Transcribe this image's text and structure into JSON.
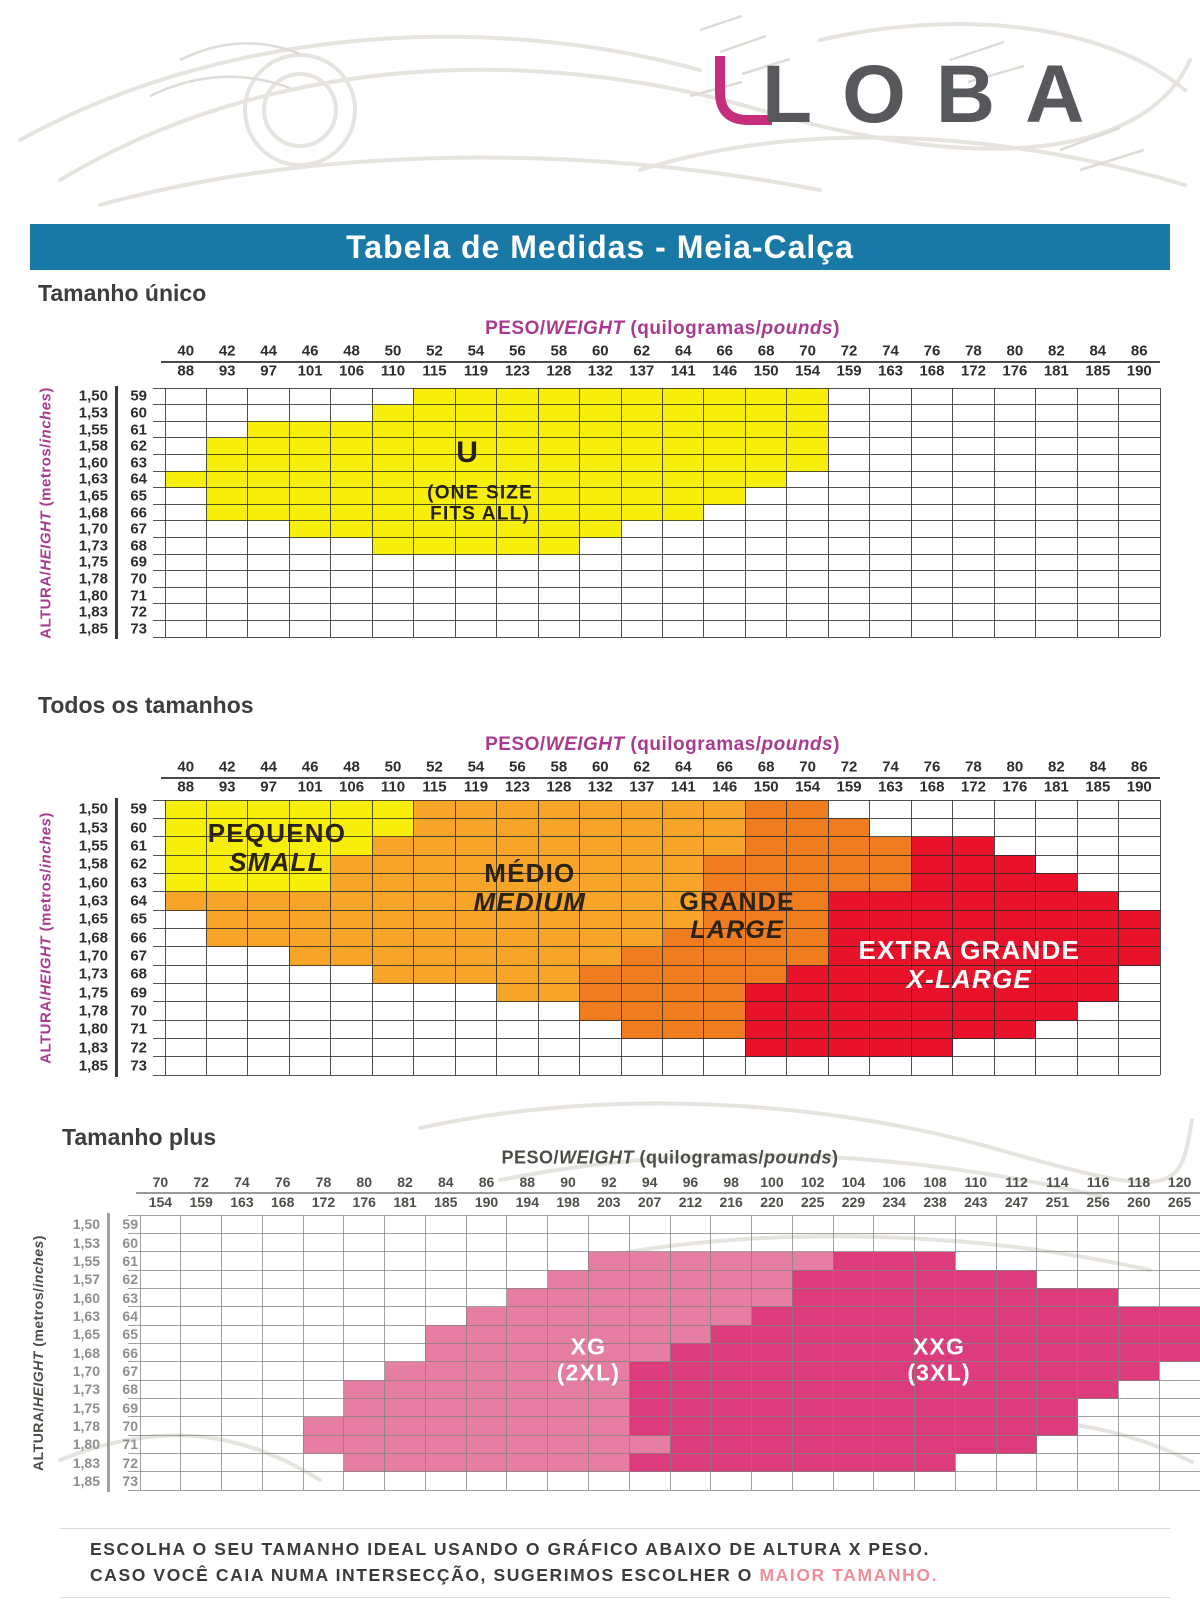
{
  "logo": {
    "text": "LOBA",
    "text_color": "#57585b",
    "accent_color": "#c62d7d"
  },
  "title": {
    "text": "Tabela de Medidas - Meia-Calça",
    "bg_color": "#1878a6",
    "text_color": "#ffffff"
  },
  "footer": {
    "line1": "ESCOLHA O SEU TAMANHO IDEAL USANDO O GRÁFICO ABAIXO DE ALTURA X PESO.",
    "line2_prefix": "CASO VOCÊ CAIA NUMA INTERSECÇÃO, SUGERIMOS ESCOLHER O ",
    "line2_highlight": "MAIOR TAMANHO.",
    "highlight_color": "#ee8e97"
  },
  "chart_data": [
    {
      "id": "tamanho-unico",
      "type": "heatmap",
      "heading": "Tamanho único",
      "xlabel": "PESO/WEIGHT (quilogramas/pounds)",
      "ylabel": "ALTURA/HEIGHT (metros/inches)",
      "x_axis": {
        "label_pt": "PESO",
        "label_en": "WEIGHT",
        "unit_pt": "quilogramas",
        "unit_en": "pounds",
        "kg": [
          40,
          42,
          44,
          46,
          48,
          50,
          52,
          54,
          56,
          58,
          60,
          62,
          64,
          66,
          68,
          70,
          72,
          74,
          76,
          78,
          80,
          82,
          84,
          86
        ],
        "lbs": [
          88,
          93,
          97,
          101,
          106,
          110,
          115,
          119,
          123,
          128,
          132,
          137,
          141,
          146,
          150,
          154,
          159,
          163,
          168,
          172,
          176,
          181,
          185,
          190
        ]
      },
      "y_axis": {
        "label_pt": "ALTURA",
        "label_en": "HEIGHT",
        "unit_pt": "metros",
        "unit_en": "inches",
        "meters": [
          "1,50",
          "1,53",
          "1,55",
          "1,58",
          "1,60",
          "1,63",
          "1,65",
          "1,68",
          "1,70",
          "1,73",
          "1,75",
          "1,78",
          "1,80",
          "1,83",
          "1,85"
        ],
        "inches": [
          59,
          60,
          61,
          62,
          63,
          64,
          65,
          66,
          67,
          68,
          69,
          70,
          71,
          72,
          73
        ]
      },
      "colors": {
        "axis_title": "#a93a90",
        "numbers": "#2d2d2d",
        "heights": "#2d2d2d",
        "grid": "rgba(42,42,42,0.82)",
        "divider": "#3a3a3a",
        "separator": "#4a4a4a"
      },
      "regions": [
        {
          "id": "u",
          "size_pt": "U",
          "size_en": "ONE SIZE FITS ALL",
          "color": "#f8ee0c",
          "rows": [
            [
              59,
              6,
              15
            ],
            [
              60,
              5,
              15
            ],
            [
              61,
              2,
              15
            ],
            [
              62,
              1,
              15
            ],
            [
              63,
              1,
              15
            ],
            [
              64,
              0,
              14
            ],
            [
              65,
              1,
              13
            ],
            [
              66,
              1,
              12
            ],
            [
              67,
              3,
              10
            ],
            [
              68,
              5,
              9
            ]
          ]
        }
      ],
      "annotations": [
        {
          "id": "u-letter",
          "lines": [
            {
              "text": "U"
            }
          ],
          "col": 7.3,
          "row": 3.9,
          "size": 30,
          "color": "#241f10"
        },
        {
          "id": "u-caption",
          "lines": [
            {
              "text": "(ONE SIZE"
            },
            {
              "text": "FITS ALL)"
            }
          ],
          "col": 7.6,
          "row": 7.0,
          "size": 19,
          "color": "#241f10"
        }
      ]
    },
    {
      "id": "todos-os-tamanhos",
      "type": "heatmap",
      "heading": "Todos os tamanhos",
      "xlabel": "PESO/WEIGHT (quilogramas/pounds)",
      "ylabel": "ALTURA/HEIGHT (metros/inches)",
      "x_axis": {
        "label_pt": "PESO",
        "label_en": "WEIGHT",
        "unit_pt": "quilogramas",
        "unit_en": "pounds",
        "kg": [
          40,
          42,
          44,
          46,
          48,
          50,
          52,
          54,
          56,
          58,
          60,
          62,
          64,
          66,
          68,
          70,
          72,
          74,
          76,
          78,
          80,
          82,
          84,
          86
        ],
        "lbs": [
          88,
          93,
          97,
          101,
          106,
          110,
          115,
          119,
          123,
          128,
          132,
          137,
          141,
          146,
          150,
          154,
          159,
          163,
          168,
          172,
          176,
          181,
          185,
          190
        ]
      },
      "y_axis": {
        "label_pt": "ALTURA",
        "label_en": "HEIGHT",
        "unit_pt": "metros",
        "unit_en": "inches",
        "meters": [
          "1,50",
          "1,53",
          "1,55",
          "1,58",
          "1,60",
          "1,63",
          "1,65",
          "1,68",
          "1,70",
          "1,73",
          "1,75",
          "1,78",
          "1,80",
          "1,83",
          "1,85"
        ],
        "inches": [
          59,
          60,
          61,
          62,
          63,
          64,
          65,
          66,
          67,
          68,
          69,
          70,
          71,
          72,
          73
        ]
      },
      "colors": {
        "axis_title": "#a93a90",
        "numbers": "#2d2d2d",
        "heights": "#2d2d2d",
        "grid": "rgba(42,42,42,0.82)",
        "divider": "#3a3a3a",
        "separator": "#4a4a4a"
      },
      "regions": [
        {
          "id": "pequeno",
          "size_pt": "PEQUENO",
          "size_en": "SMALL",
          "color": "#f8ee0c",
          "rows": [
            [
              59,
              0,
              5
            ],
            [
              60,
              0,
              5
            ],
            [
              61,
              0,
              4
            ],
            [
              62,
              0,
              3
            ],
            [
              63,
              0,
              3
            ]
          ]
        },
        {
          "id": "medio",
          "size_pt": "MÉDIO",
          "size_en": "MEDIUM",
          "color": "#f6a528",
          "rows": [
            [
              59,
              6,
              13
            ],
            [
              60,
              6,
              13
            ],
            [
              61,
              5,
              13
            ],
            [
              62,
              4,
              12
            ],
            [
              63,
              4,
              12
            ],
            [
              64,
              0,
              12
            ],
            [
              65,
              1,
              12
            ],
            [
              66,
              1,
              11
            ],
            [
              67,
              3,
              10
            ],
            [
              68,
              5,
              9
            ],
            [
              69,
              8,
              9
            ]
          ]
        },
        {
          "id": "grande",
          "size_pt": "GRANDE",
          "size_en": "LARGE",
          "color": "#ef7c1f",
          "rows": [
            [
              59,
              14,
              15
            ],
            [
              60,
              14,
              16
            ],
            [
              61,
              14,
              17
            ],
            [
              62,
              13,
              17
            ],
            [
              63,
              13,
              17
            ],
            [
              64,
              13,
              15
            ],
            [
              65,
              13,
              15
            ],
            [
              66,
              12,
              15
            ],
            [
              67,
              11,
              15
            ],
            [
              68,
              10,
              14
            ],
            [
              69,
              10,
              13
            ],
            [
              70,
              10,
              13
            ],
            [
              71,
              11,
              13
            ]
          ]
        },
        {
          "id": "extra-grande",
          "size_pt": "EXTRA GRANDE",
          "size_en": "X-LARGE",
          "color": "#e8132b",
          "rows": [
            [
              61,
              18,
              19
            ],
            [
              62,
              18,
              20
            ],
            [
              63,
              18,
              21
            ],
            [
              64,
              16,
              22
            ],
            [
              65,
              16,
              23
            ],
            [
              66,
              16,
              23
            ],
            [
              67,
              16,
              23
            ],
            [
              68,
              15,
              22
            ],
            [
              69,
              14,
              22
            ],
            [
              70,
              14,
              21
            ],
            [
              71,
              14,
              20
            ],
            [
              72,
              14,
              18
            ]
          ]
        }
      ],
      "annotations": [
        {
          "id": "pequeno-label",
          "lines": [
            {
              "text": "PEQUENO"
            },
            {
              "text": "SMALL",
              "italic": true
            }
          ],
          "col": 2.7,
          "row": 2.6,
          "size": 26,
          "color": "#2b2212"
        },
        {
          "id": "medio-label",
          "lines": [
            {
              "text": "MÉDIO"
            },
            {
              "text": "MEDIUM",
              "italic": true
            }
          ],
          "col": 8.8,
          "row": 4.8,
          "size": 26,
          "color": "#2b2212"
        },
        {
          "id": "grande-label",
          "lines": [
            {
              "text": "GRANDE"
            },
            {
              "text": "LARGE",
              "italic": true
            }
          ],
          "col": 13.8,
          "row": 6.3,
          "size": 25,
          "color": "#2b2212"
        },
        {
          "id": "extra-grande-label",
          "lines": [
            {
              "text": "EXTRA GRANDE"
            },
            {
              "text": "X-LARGE",
              "italic": true
            }
          ],
          "col": 19.4,
          "row": 9.0,
          "size": 26,
          "color": "#ffffff"
        }
      ]
    },
    {
      "id": "tamanho-plus",
      "type": "heatmap",
      "heading": "Tamanho plus",
      "xlabel": "PESO/WEIGHT (quilogramas/pounds)",
      "ylabel": "ALTURA/HEIGHT (metros/inches)",
      "x_axis": {
        "label_pt": "PESO",
        "label_en": "WEIGHT",
        "unit_pt": "quilogramas",
        "unit_en": "pounds",
        "kg": [
          70,
          72,
          74,
          76,
          78,
          80,
          82,
          84,
          86,
          88,
          90,
          92,
          94,
          96,
          98,
          100,
          102,
          104,
          106,
          108,
          110,
          112,
          114,
          116,
          118,
          120
        ],
        "lbs": [
          154,
          159,
          163,
          168,
          172,
          176,
          181,
          185,
          190,
          194,
          198,
          203,
          207,
          212,
          216,
          220,
          225,
          229,
          234,
          238,
          243,
          247,
          251,
          256,
          260,
          265
        ]
      },
      "y_axis": {
        "label_pt": "ALTURA",
        "label_en": "HEIGHT",
        "unit_pt": "metros",
        "unit_en": "inches",
        "meters": [
          "1,50",
          "1,53",
          "1,55",
          "1,57",
          "1,60",
          "1,63",
          "1,65",
          "1,68",
          "1,70",
          "1,73",
          "1,75",
          "1,78",
          "1,80",
          "1,83",
          "1,85"
        ],
        "inches": [
          59,
          60,
          61,
          62,
          63,
          64,
          65,
          66,
          67,
          68,
          69,
          70,
          71,
          72,
          73
        ]
      },
      "colors": {
        "axis_title": "#4c4d47",
        "numbers": "#4e4e49",
        "heights": "#8e8e8e",
        "grid": "rgba(130,130,130,0.75)",
        "divider": "#a0a0a0",
        "separator": "#9a9a9a"
      },
      "regions": [
        {
          "id": "xg",
          "size_pt": "XG",
          "size_en": "2XL",
          "color": "#e67ea4",
          "rows": [
            [
              61,
              11,
              16
            ],
            [
              62,
              10,
              15
            ],
            [
              63,
              9,
              15
            ],
            [
              64,
              8,
              14
            ],
            [
              65,
              7,
              13
            ],
            [
              66,
              7,
              12
            ],
            [
              67,
              6,
              11
            ],
            [
              68,
              5,
              11
            ],
            [
              69,
              5,
              11
            ],
            [
              70,
              4,
              11
            ],
            [
              71,
              4,
              12
            ],
            [
              72,
              5,
              11
            ]
          ]
        },
        {
          "id": "xxg",
          "size_pt": "XXG",
          "size_en": "3XL",
          "color": "#dc3c7b",
          "rows": [
            [
              61,
              17,
              19
            ],
            [
              62,
              16,
              21
            ],
            [
              63,
              16,
              23
            ],
            [
              64,
              15,
              25
            ],
            [
              65,
              14,
              25
            ],
            [
              66,
              13,
              25
            ],
            [
              67,
              12,
              24
            ],
            [
              68,
              12,
              23
            ],
            [
              69,
              12,
              22
            ],
            [
              70,
              12,
              22
            ],
            [
              71,
              13,
              21
            ],
            [
              72,
              12,
              19
            ]
          ]
        }
      ],
      "annotations": [
        {
          "id": "xg-label",
          "lines": [
            {
              "text": "XG"
            },
            {
              "text": "(2XL)"
            }
          ],
          "col": 11.0,
          "row": 7.9,
          "size": 23,
          "color": "#ffffff"
        },
        {
          "id": "xxg-label",
          "lines": [
            {
              "text": "XXG"
            },
            {
              "text": "(3XL)"
            }
          ],
          "col": 19.6,
          "row": 7.9,
          "size": 23,
          "color": "#ffffff"
        }
      ]
    }
  ]
}
